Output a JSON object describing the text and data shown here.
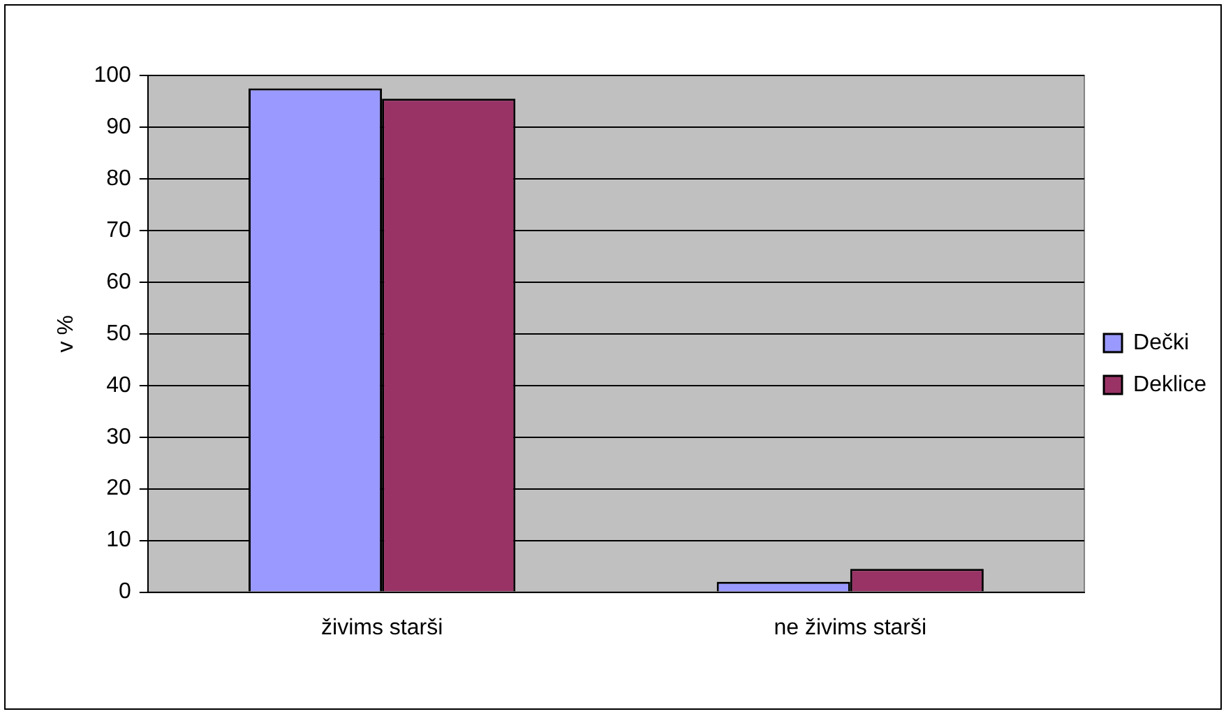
{
  "chart_data": {
    "type": "bar",
    "ylabel": "v %",
    "categories": [
      "živims starši",
      "ne živims starši"
    ],
    "series": [
      {
        "name": "Dečki",
        "color": "#9999ff",
        "values": [
          97.5,
          2
        ]
      },
      {
        "name": "Deklice",
        "color": "#993366",
        "values": [
          95.5,
          4.5
        ]
      }
    ],
    "ylim": [
      0,
      100
    ],
    "yticks": [
      0,
      10,
      20,
      30,
      40,
      50,
      60,
      70,
      80,
      90,
      100
    ],
    "grid": "y",
    "legend": "right"
  }
}
